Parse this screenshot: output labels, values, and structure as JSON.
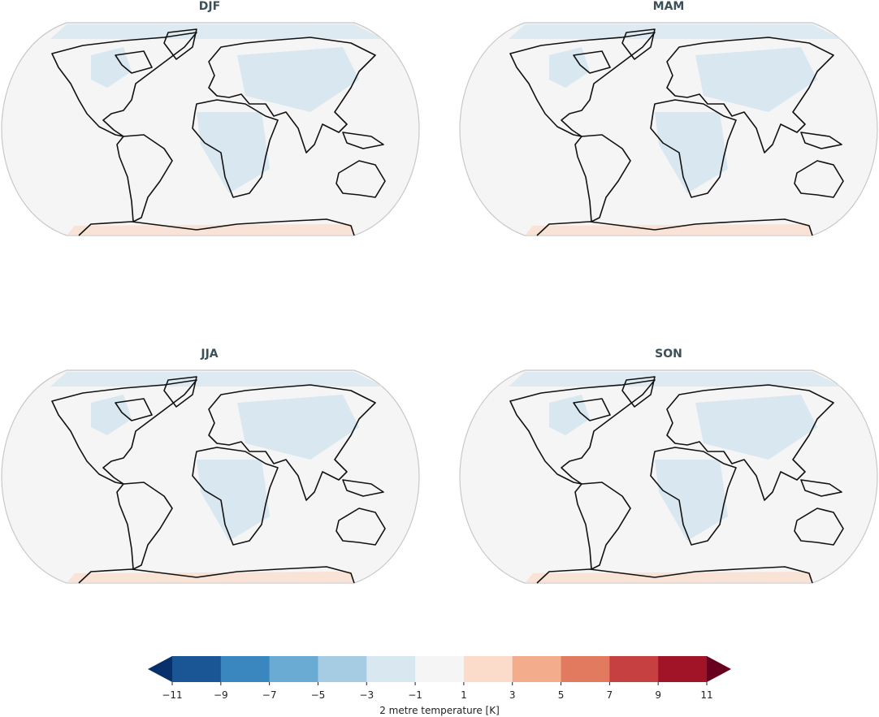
{
  "panels": [
    {
      "title": "DJF"
    },
    {
      "title": "MAM"
    },
    {
      "title": "JJA"
    },
    {
      "title": "SON"
    }
  ],
  "colorbar": {
    "label": "2 metre temperature [K]",
    "lim": [
      -11,
      11
    ],
    "ticks": [
      {
        "value": -11,
        "label": "−11"
      },
      {
        "value": -9,
        "label": "−9"
      },
      {
        "value": -7,
        "label": "−7"
      },
      {
        "value": -5,
        "label": "−5"
      },
      {
        "value": -3,
        "label": "−3"
      },
      {
        "value": -1,
        "label": "−1"
      },
      1,
      3,
      5,
      7,
      9,
      11
    ],
    "colors": [
      "#1a5596",
      "#3a87c0",
      "#6aabd3",
      "#a5cce3",
      "#d8e7f0",
      "#f5f5f5",
      "#fbdbc9",
      "#f3ad8d",
      "#e17a5e",
      "#c63f41",
      "#a11428"
    ],
    "under": "#08306b",
    "over": "#67001f"
  }
}
